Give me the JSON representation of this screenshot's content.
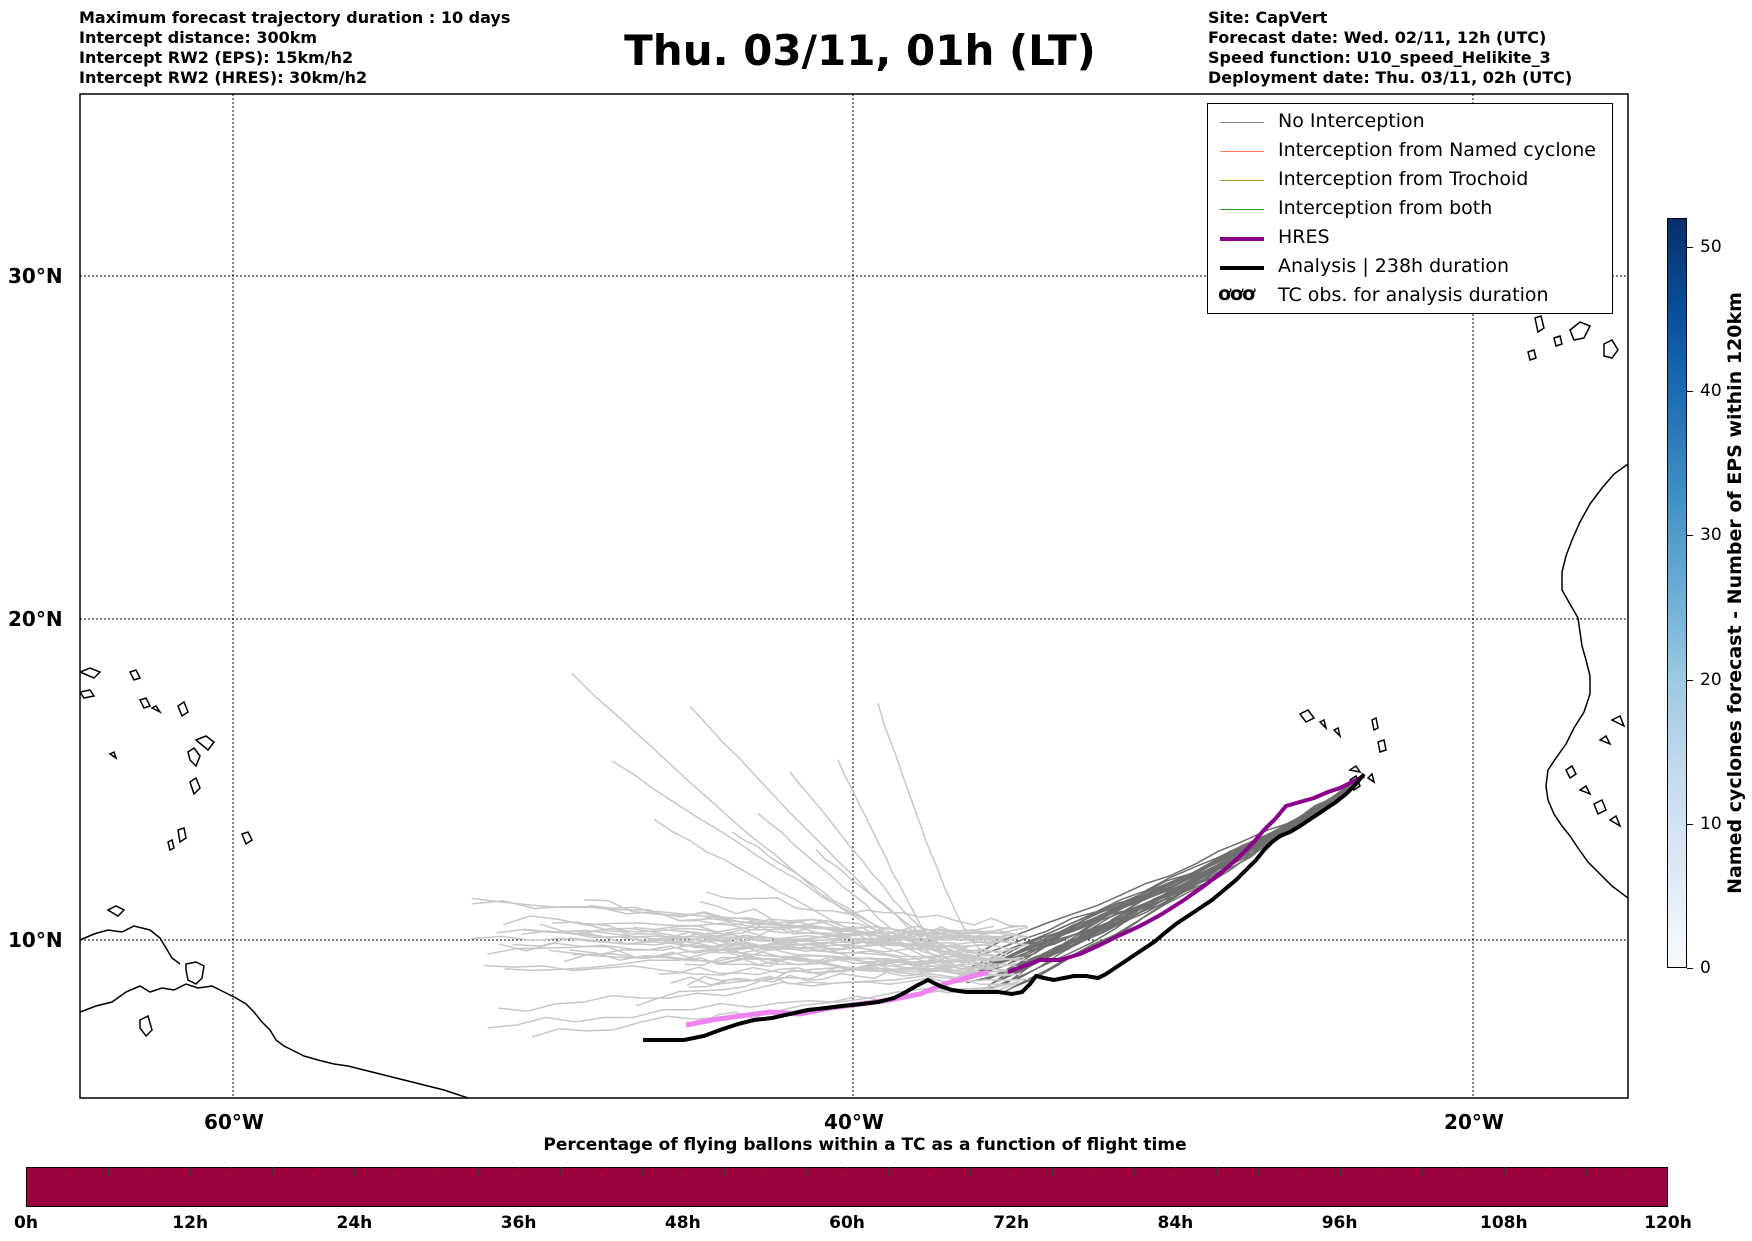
{
  "header": {
    "left_lines": [
      "Maximum forecast trajectory duration : 10 days",
      "Intercept distance: 300km",
      "Intercept RW2 (EPS):  15km/h2",
      "Intercept RW2 (HRES): 30km/h2"
    ],
    "title": "Thu. 03/11, 01h (LT)",
    "right_lines": [
      "Site: CapVert",
      "Forecast date: Wed. 02/11, 12h (UTC)",
      "Speed function: U10_speed_Helikite_3",
      "Deployment date: Thu. 03/11, 02h (UTC)"
    ]
  },
  "map": {
    "lon_range": [
      -65,
      -15
    ],
    "lat_range": [
      5.4,
      34.6
    ],
    "lat_labels": [
      "30°N",
      "20°N",
      "10°N"
    ],
    "lon_labels": [
      "60°W",
      "40°W",
      "20°W"
    ],
    "gridlines": true
  },
  "legend": {
    "placement": "top-right",
    "items": [
      {
        "label": "No Interception",
        "color": "#808080"
      },
      {
        "label": "Interception from Named cyclone",
        "color": "#ff7f50"
      },
      {
        "label": "Interception from Trochoid",
        "color": "#9e9a3c"
      },
      {
        "label": "Interception from both",
        "color": "#2ca02c"
      },
      {
        "label": "HRES",
        "color": "#8b008b"
      },
      {
        "label": "Analysis | 238h duration",
        "color": "#000000"
      },
      {
        "label": "TC obs. for analysis duration",
        "color": "#000000",
        "symbol": "ơơơ"
      }
    ]
  },
  "colorbar_right": {
    "title": "Named cyclones forecast - Number of EPS within 120km",
    "ticks": [
      "0",
      "10",
      "20",
      "30",
      "40",
      "50"
    ],
    "range": [
      0,
      52
    ]
  },
  "colorbar_bottom": {
    "title": "Percentage of flying ballons within a TC as a function of flight time",
    "ticks": [
      "0h",
      "12h",
      "24h",
      "36h",
      "48h",
      "60h",
      "72h",
      "84h",
      "96h",
      "108h",
      "120h"
    ],
    "color": "#9b003f"
  }
}
